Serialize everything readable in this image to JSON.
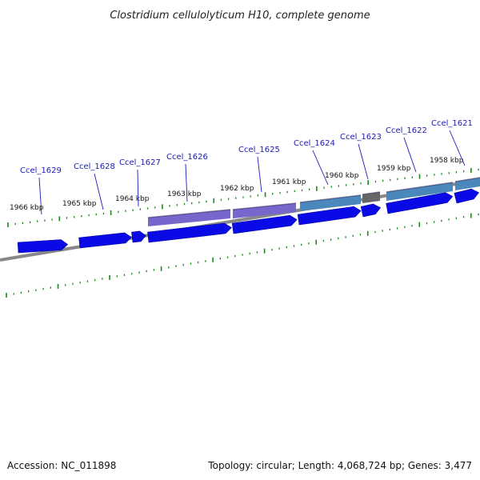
{
  "title": "Clostridium cellulolyticum H10, complete genome",
  "footer": {
    "accession": "Accession: NC_011898",
    "summary": "Topology: circular; Length: 4,068,724 bp; Genes: 3,477"
  },
  "colors": {
    "gene_arrow": "#0a0ae6",
    "cds_purple": "#7766cc",
    "cds_steel": "#4a88bb",
    "cds_gray": "#666666",
    "backbone": "#888888",
    "ticks": "#1a8a1a",
    "label_link": "#1a1ab8"
  },
  "ruler": {
    "unit": "kbp",
    "tick_labels": [
      "1966 kbp",
      "1965 kbp",
      "1964 kbp",
      "1963 kbp",
      "1962 kbp",
      "1961 kbp",
      "1960 kbp",
      "1959 kbp",
      "1958 kbp"
    ]
  },
  "genes": [
    {
      "locus_tag": "Ccel_1629"
    },
    {
      "locus_tag": "Ccel_1628"
    },
    {
      "locus_tag": "Ccel_1627"
    },
    {
      "locus_tag": "Ccel_1626"
    },
    {
      "locus_tag": "Ccel_1625"
    },
    {
      "locus_tag": "Ccel_1624"
    },
    {
      "locus_tag": "Ccel_1623"
    },
    {
      "locus_tag": "Ccel_1622"
    },
    {
      "locus_tag": "Ccel_1621"
    }
  ]
}
